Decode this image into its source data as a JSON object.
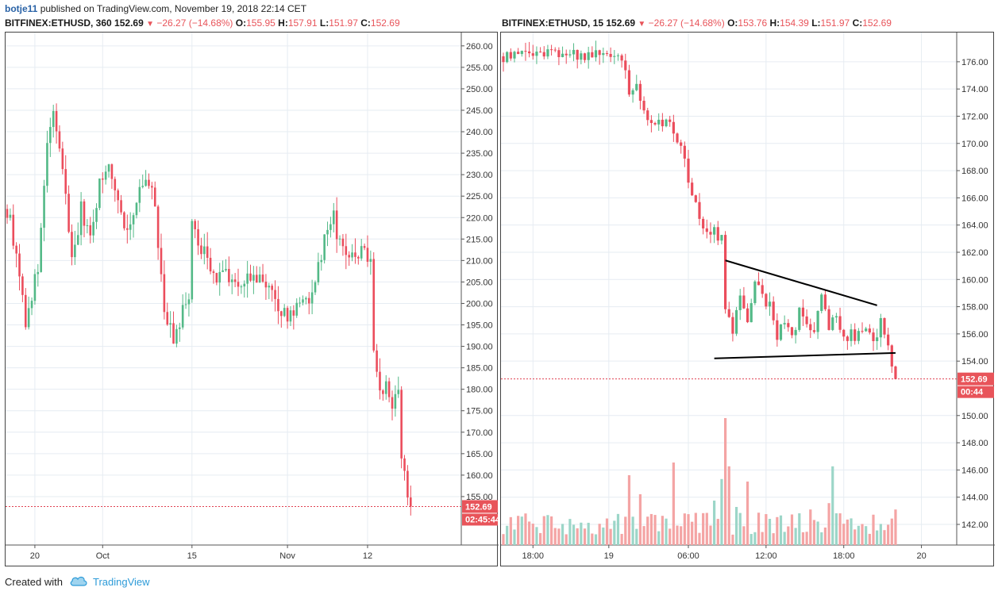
{
  "attribution": {
    "author": "botje11",
    "text": "published on TradingView.com, November 19, 2018 22:14 CET"
  },
  "footer": {
    "created_with": "Created with",
    "brand": "TradingView",
    "icon": "tradingview-cloud-icon"
  },
  "colors": {
    "up": "#53b987",
    "down": "#eb4d5c",
    "vol_up": "#9cd6c8",
    "vol_down": "#f4a4a4",
    "grid": "#e6ecf2",
    "line": "#000000"
  },
  "left": {
    "symbol": "BITFINEX:ETHUSD, 360",
    "last": "152.69",
    "arrow": "▼",
    "change": "−26.27 (−14.68%)",
    "o_label": "O:",
    "o": "155.95",
    "h_label": "H:",
    "h": "157.91",
    "l_label": "L:",
    "l": "151.97",
    "c_label": "C:",
    "c": "152.69",
    "price_badge": "152.69",
    "countdown": "02:45:44"
  },
  "right": {
    "symbol": "BITFINEX:ETHUSD, 15",
    "last": "152.69",
    "arrow": "▼",
    "change": "−26.27 (−14.68%)",
    "o_label": "O:",
    "o": "153.76",
    "h_label": "H:",
    "h": "154.39",
    "l_label": "L:",
    "l": "151.97",
    "c_label": "C:",
    "c": "152.69",
    "price_badge": "152.69",
    "countdown": "00:44"
  },
  "chart_data": [
    {
      "type": "candlestick",
      "title": "BITFINEX:ETHUSD, 360",
      "ylim": [
        150,
        262
      ],
      "y_ticks": [
        "260.00",
        "255.00",
        "250.00",
        "245.00",
        "240.00",
        "235.00",
        "230.00",
        "225.00",
        "220.00",
        "215.00",
        "210.00",
        "205.00",
        "200.00",
        "195.00",
        "190.00",
        "185.00",
        "180.00",
        "175.00",
        "170.00",
        "165.00",
        "160.00",
        "155.00"
      ],
      "x_ticks": [
        "20",
        "Oct",
        "15",
        "Nov",
        "12"
      ],
      "last_price": 152.69,
      "waypoints": [
        {
          "t": 0,
          "p": 222
        },
        {
          "t": 3,
          "p": 212
        },
        {
          "t": 6,
          "p": 196
        },
        {
          "t": 10,
          "p": 208
        },
        {
          "t": 13,
          "p": 236
        },
        {
          "t": 15,
          "p": 244
        },
        {
          "t": 18,
          "p": 232
        },
        {
          "t": 21,
          "p": 210
        },
        {
          "t": 24,
          "p": 222
        },
        {
          "t": 27,
          "p": 215
        },
        {
          "t": 30,
          "p": 228
        },
        {
          "t": 33,
          "p": 232
        },
        {
          "t": 36,
          "p": 224
        },
        {
          "t": 39,
          "p": 217
        },
        {
          "t": 42,
          "p": 224
        },
        {
          "t": 45,
          "p": 229
        },
        {
          "t": 48,
          "p": 223
        },
        {
          "t": 51,
          "p": 198
        },
        {
          "t": 54,
          "p": 191
        },
        {
          "t": 57,
          "p": 198
        },
        {
          "t": 59,
          "p": 200
        },
        {
          "t": 60,
          "p": 220
        },
        {
          "t": 62,
          "p": 213
        },
        {
          "t": 65,
          "p": 211
        },
        {
          "t": 68,
          "p": 205
        },
        {
          "t": 71,
          "p": 208
        },
        {
          "t": 74,
          "p": 204
        },
        {
          "t": 78,
          "p": 206
        },
        {
          "t": 82,
          "p": 205
        },
        {
          "t": 86,
          "p": 204
        },
        {
          "t": 88,
          "p": 197
        },
        {
          "t": 91,
          "p": 197
        },
        {
          "t": 95,
          "p": 200
        },
        {
          "t": 98,
          "p": 201
        },
        {
          "t": 101,
          "p": 209
        },
        {
          "t": 104,
          "p": 217
        },
        {
          "t": 106,
          "p": 220
        },
        {
          "t": 108,
          "p": 213
        },
        {
          "t": 111,
          "p": 211
        },
        {
          "t": 115,
          "p": 212
        },
        {
          "t": 118,
          "p": 211
        },
        {
          "t": 119,
          "p": 190
        },
        {
          "t": 121,
          "p": 180
        },
        {
          "t": 123,
          "p": 182
        },
        {
          "t": 125,
          "p": 176
        },
        {
          "t": 127,
          "p": 180
        },
        {
          "t": 128,
          "p": 165
        },
        {
          "t": 130,
          "p": 156
        },
        {
          "t": 131,
          "p": 152.69
        }
      ]
    },
    {
      "type": "candlestick",
      "title": "BITFINEX:ETHUSD, 15",
      "ylim": [
        141.3,
        177.8
      ],
      "y_ticks": [
        "176.00",
        "174.00",
        "172.00",
        "170.00",
        "168.00",
        "166.00",
        "164.00",
        "162.00",
        "160.00",
        "158.00",
        "156.00",
        "154.00",
        "150.00",
        "148.00",
        "146.00",
        "144.00",
        "142.00"
      ],
      "x_ticks": [
        "18:00",
        "19",
        "06:00",
        "12:00",
        "18:00",
        "20"
      ],
      "last_price": 152.69,
      "waypoints": [
        {
          "t": 0,
          "p": 176.4
        },
        {
          "t": 5,
          "p": 176.5
        },
        {
          "t": 12,
          "p": 176.8
        },
        {
          "t": 20,
          "p": 176.6
        },
        {
          "t": 26,
          "p": 176.5
        },
        {
          "t": 30,
          "p": 176.3
        },
        {
          "t": 32,
          "p": 176
        },
        {
          "t": 34,
          "p": 174
        },
        {
          "t": 36,
          "p": 174.5
        },
        {
          "t": 38,
          "p": 172
        },
        {
          "t": 42,
          "p": 171.6
        },
        {
          "t": 45,
          "p": 171.7
        },
        {
          "t": 48,
          "p": 169.5
        },
        {
          "t": 51,
          "p": 166.5
        },
        {
          "t": 54,
          "p": 164
        },
        {
          "t": 57,
          "p": 163.5
        },
        {
          "t": 59,
          "p": 163
        },
        {
          "t": 60,
          "p": 158
        },
        {
          "t": 62,
          "p": 156
        },
        {
          "t": 64,
          "p": 159
        },
        {
          "t": 66,
          "p": 157
        },
        {
          "t": 68,
          "p": 160
        },
        {
          "t": 70,
          "p": 158.5
        },
        {
          "t": 72,
          "p": 158
        },
        {
          "t": 74,
          "p": 156
        },
        {
          "t": 76,
          "p": 157
        },
        {
          "t": 78,
          "p": 155.5
        },
        {
          "t": 80,
          "p": 157.5
        },
        {
          "t": 82,
          "p": 157
        },
        {
          "t": 84,
          "p": 156
        },
        {
          "t": 86,
          "p": 158.5
        },
        {
          "t": 88,
          "p": 156.5
        },
        {
          "t": 90,
          "p": 157.5
        },
        {
          "t": 92,
          "p": 155.5
        },
        {
          "t": 94,
          "p": 156
        },
        {
          "t": 96,
          "p": 155.8
        },
        {
          "t": 98,
          "p": 156.5
        },
        {
          "t": 100,
          "p": 155.5
        },
        {
          "t": 102,
          "p": 156.8
        },
        {
          "t": 104,
          "p": 155.2
        },
        {
          "t": 105,
          "p": 153.5
        },
        {
          "t": 106,
          "p": 152.69
        }
      ],
      "trendlines": [
        {
          "from": {
            "t": 60,
            "p": 161.4
          },
          "to": {
            "t": 101,
            "p": 158.1
          }
        },
        {
          "from": {
            "t": 57,
            "p": 154.2
          },
          "to": {
            "t": 106,
            "p": 154.6
          }
        }
      ]
    }
  ]
}
